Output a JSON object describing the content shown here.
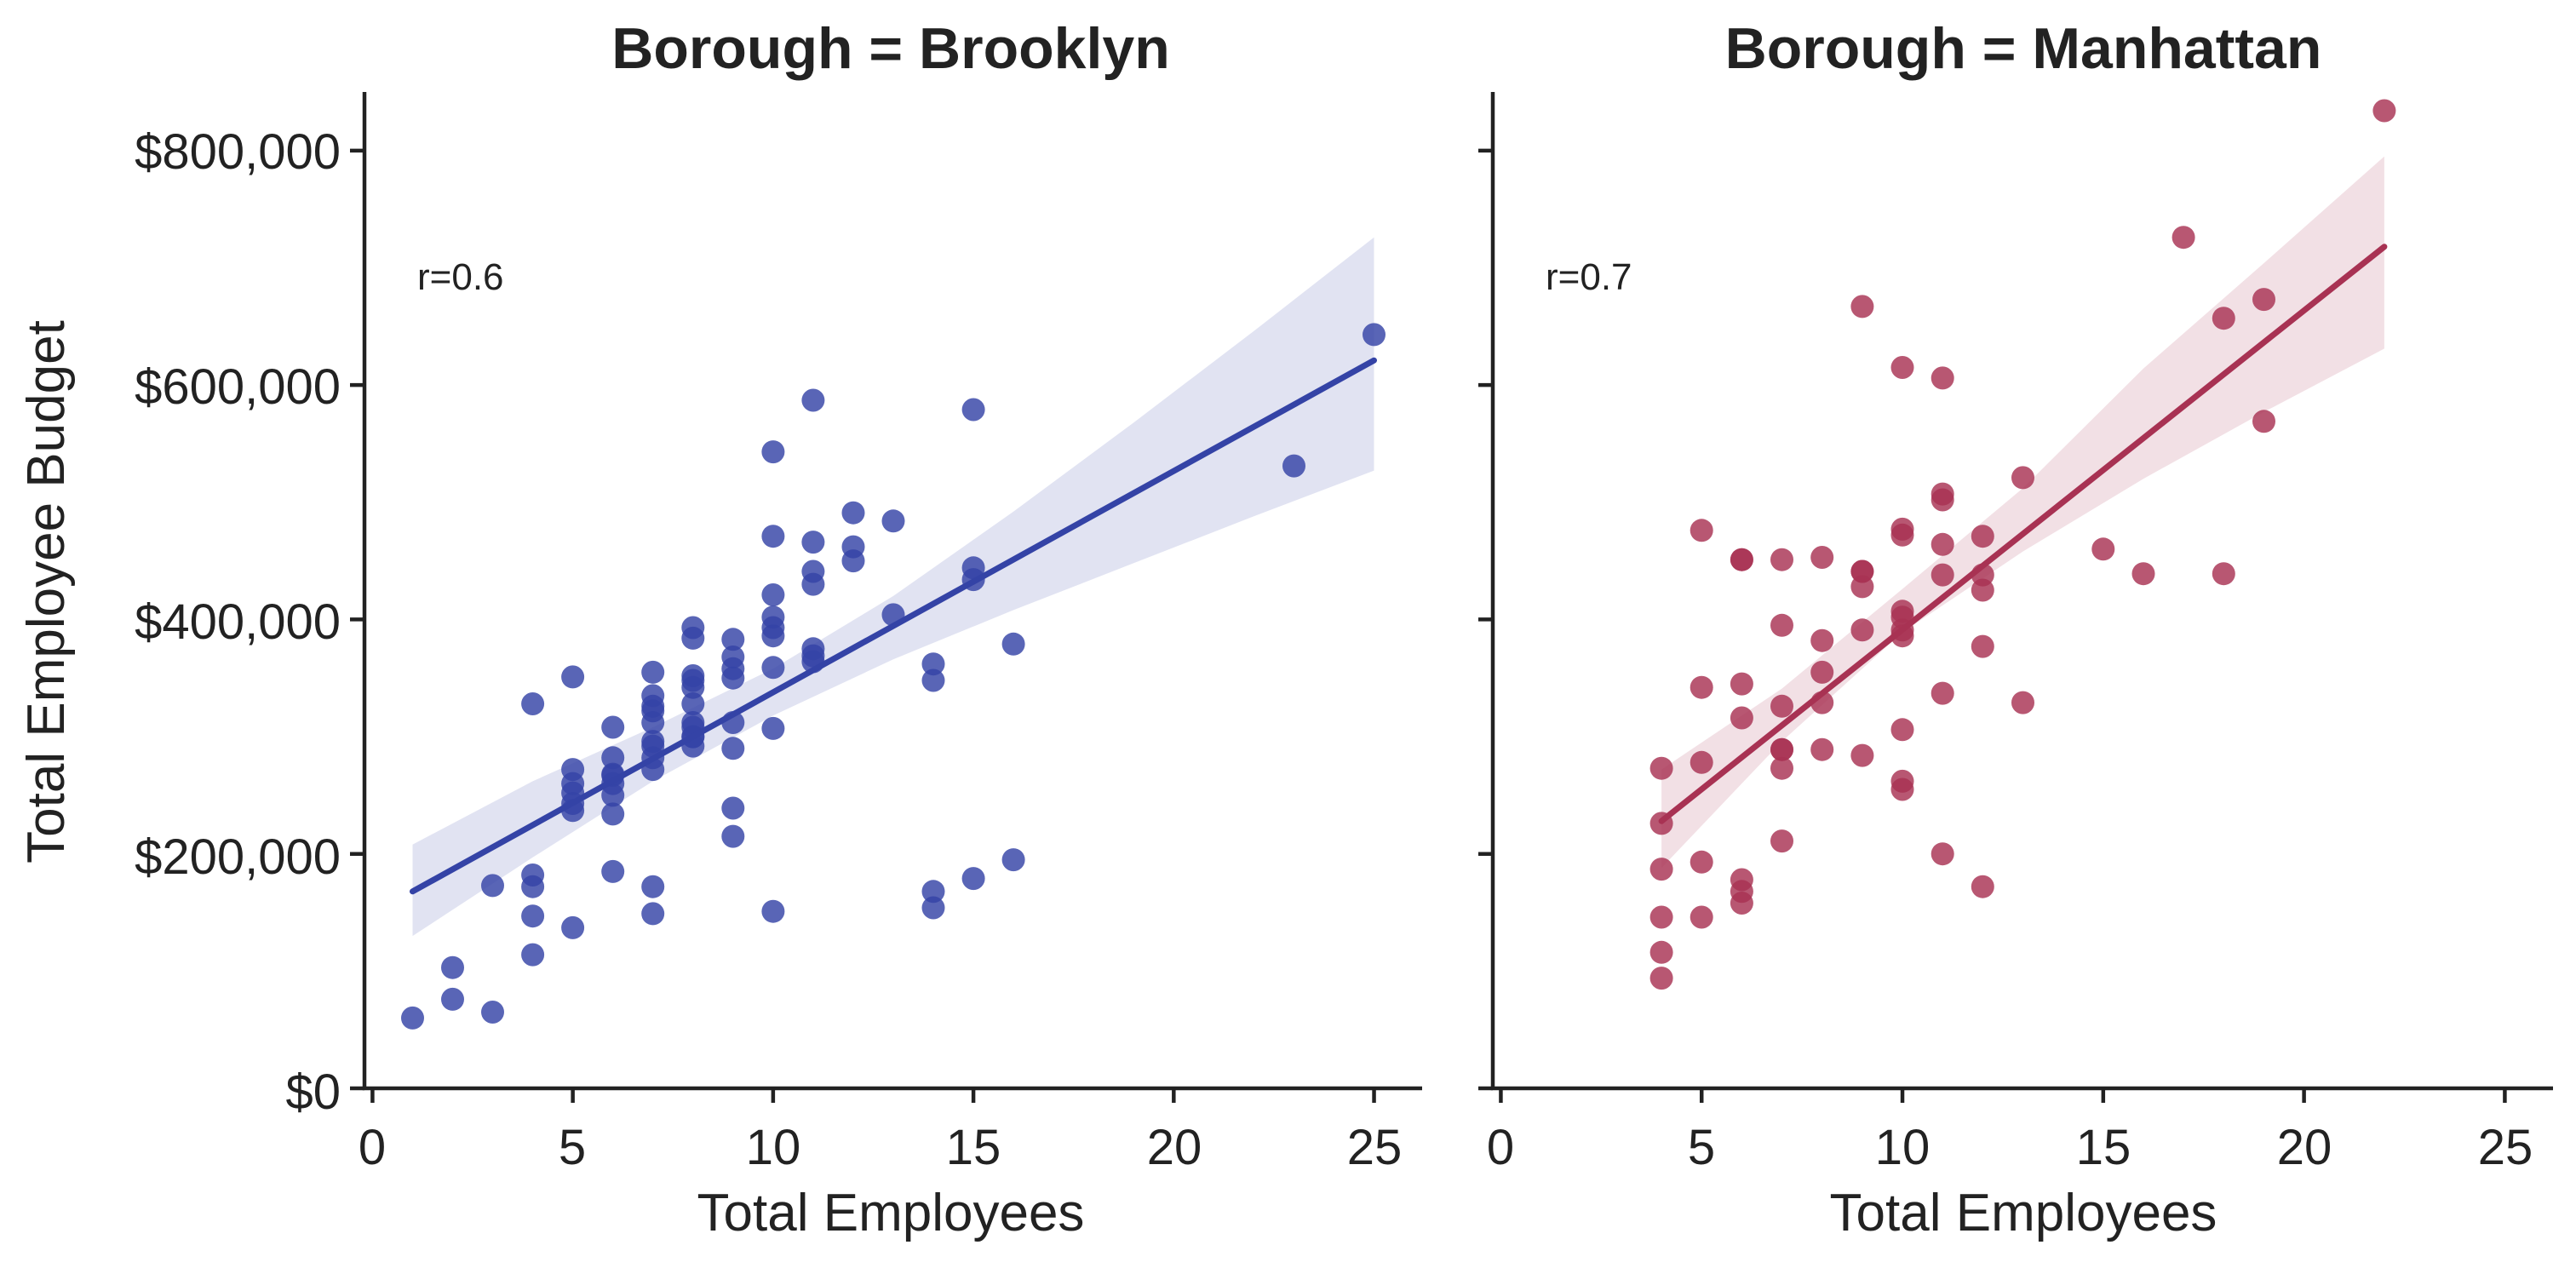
{
  "chart_data": {
    "type": "scatter",
    "ylabel": "Total Employee Budget",
    "ylim": [
      0,
      850000
    ],
    "yticks": [
      0,
      200000,
      400000,
      600000,
      800000
    ],
    "ytick_labels": [
      "$0",
      "$200,000",
      "$400,000",
      "$600,000",
      "$800,000"
    ],
    "xticks": [
      0,
      5,
      10,
      15,
      20,
      25
    ],
    "xtick_labels": [
      "0",
      "5",
      "10",
      "15",
      "20",
      "25"
    ],
    "grid": false,
    "shared_y": true,
    "panels": [
      {
        "title": "Borough = Brooklyn",
        "xlabel": "Total Employees",
        "xlim": [
          -0.2,
          26.2
        ],
        "annotation": "r=0.6",
        "color": "#3443a6",
        "regression": {
          "x": [
            1,
            25
          ],
          "y": [
            168000,
            621000
          ]
        },
        "ci": {
          "x": [
            1,
            4,
            7,
            10,
            13,
            16,
            19,
            22,
            25
          ],
          "lower": [
            130000,
            197000,
            262000,
            318000,
            366000,
            408000,
            448000,
            488000,
            527000
          ],
          "upper": [
            208000,
            262000,
            308000,
            358000,
            420000,
            492000,
            568000,
            646000,
            726000
          ]
        },
        "points": {
          "x": [
            1,
            2,
            2,
            3,
            3,
            4,
            4,
            4,
            4,
            4,
            5,
            5,
            5,
            5,
            5,
            5,
            5,
            6,
            6,
            6,
            6,
            6,
            6,
            6,
            6,
            7,
            7,
            7,
            7,
            7,
            7,
            7,
            7,
            7,
            7,
            7,
            8,
            8,
            8,
            8,
            8,
            8,
            8,
            8,
            8,
            8,
            8,
            9,
            9,
            9,
            9,
            9,
            9,
            9,
            9,
            10,
            10,
            10,
            10,
            10,
            10,
            10,
            10,
            10,
            11,
            11,
            11,
            11,
            11,
            11,
            11,
            12,
            12,
            12,
            13,
            13,
            14,
            14,
            14,
            14,
            15,
            15,
            15,
            15,
            16,
            16,
            23,
            25
          ],
          "y": [
            60000,
            76000,
            103000,
            65000,
            173000,
            114000,
            147000,
            172000,
            182000,
            328000,
            137000,
            237000,
            243000,
            252000,
            260000,
            272000,
            351000,
            185000,
            234000,
            250000,
            260000,
            268000,
            282000,
            308000,
            267000,
            149000,
            172000,
            272000,
            282000,
            292000,
            312000,
            322000,
            326000,
            335000,
            355000,
            296000,
            292000,
            300000,
            308000,
            312000,
            328000,
            342000,
            348000,
            352000,
            384000,
            393000,
            300000,
            215000,
            239000,
            290000,
            312000,
            350000,
            358000,
            368000,
            383000,
            151000,
            307000,
            359000,
            386000,
            393000,
            402000,
            421000,
            471000,
            543000,
            364000,
            369000,
            375000,
            430000,
            441000,
            466000,
            587000,
            450000,
            462000,
            491000,
            404000,
            484000,
            154000,
            168000,
            348000,
            362000,
            179000,
            434000,
            444000,
            579000,
            195000,
            379000,
            531000,
            643000
          ]
        }
      },
      {
        "title": "Borough = Manhattan",
        "xlabel": "Total Employees",
        "xlim": [
          -0.2,
          26.2
        ],
        "annotation": "r=0.7",
        "color": "#a83253",
        "regression": {
          "x": [
            4,
            22
          ],
          "y": [
            228000,
            718000
          ]
        },
        "ci": {
          "x": [
            4,
            7,
            10,
            13,
            16,
            19,
            22
          ],
          "lower": [
            188000,
            296000,
            389000,
            458000,
            520000,
            577000,
            631000
          ],
          "upper": [
            272000,
            341000,
            426000,
            512000,
            614000,
            704000,
            795000
          ]
        },
        "points": {
          "x": [
            4,
            4,
            4,
            4,
            4,
            4,
            5,
            5,
            5,
            5,
            5,
            6,
            6,
            6,
            6,
            6,
            6,
            6,
            7,
            7,
            7,
            7,
            7,
            7,
            7,
            8,
            8,
            8,
            8,
            8,
            9,
            9,
            9,
            9,
            9,
            9,
            10,
            10,
            10,
            10,
            10,
            10,
            10,
            10,
            10,
            10,
            11,
            11,
            11,
            11,
            11,
            11,
            11,
            12,
            12,
            12,
            12,
            12,
            13,
            13,
            15,
            16,
            17,
            18,
            18,
            19,
            19,
            22
          ],
          "y": [
            94000,
            116000,
            146000,
            187000,
            226000,
            273000,
            146000,
            193000,
            278000,
            342000,
            476000,
            158000,
            168000,
            178000,
            316000,
            345000,
            451000,
            451000,
            211000,
            273000,
            289000,
            326000,
            395000,
            451000,
            289000,
            289000,
            329000,
            355000,
            382000,
            453000,
            284000,
            391000,
            428000,
            441000,
            667000,
            441000,
            255000,
            262000,
            306000,
            386000,
            391000,
            402000,
            407000,
            472000,
            477000,
            615000,
            200000,
            337000,
            438000,
            464000,
            502000,
            507000,
            606000,
            172000,
            377000,
            425000,
            438000,
            471000,
            329000,
            521000,
            460000,
            439000,
            726000,
            439000,
            657000,
            569000,
            673000,
            834000
          ]
        }
      }
    ]
  }
}
